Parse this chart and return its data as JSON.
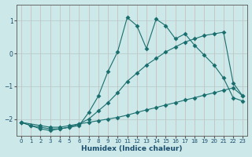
{
  "xlabel": "Humidex (Indice chaleur)",
  "bg_color": "#cce8e8",
  "grid_color": "#b0cccc",
  "line_color": "#1a6e6e",
  "xlim": [
    -0.5,
    23.5
  ],
  "ylim": [
    -2.5,
    1.5
  ],
  "xticks": [
    0,
    1,
    2,
    3,
    4,
    5,
    6,
    7,
    8,
    9,
    10,
    11,
    12,
    13,
    14,
    15,
    16,
    17,
    18,
    19,
    20,
    21,
    22,
    23
  ],
  "yticks": [
    -2,
    -1,
    0,
    1
  ],
  "line1_x": [
    0,
    1,
    2,
    3,
    4,
    5,
    6,
    7,
    8,
    9,
    10,
    11,
    12,
    13,
    14,
    15,
    16,
    17,
    18,
    19,
    20,
    21,
    22,
    23
  ],
  "line1_y": [
    -2.1,
    -2.2,
    -2.25,
    -2.3,
    -2.3,
    -2.25,
    -2.2,
    -1.8,
    -1.3,
    -0.55,
    0.05,
    1.1,
    0.85,
    0.15,
    1.05,
    0.85,
    0.45,
    0.6,
    0.25,
    -0.05,
    -0.35,
    -0.75,
    -1.35,
    -1.45
  ],
  "line2_x": [
    0,
    1,
    2,
    3,
    4,
    5,
    6,
    7,
    8,
    9,
    10,
    11,
    12,
    13,
    14,
    15,
    16,
    17,
    18,
    19,
    20,
    21,
    22,
    23
  ],
  "line2_y": [
    -2.1,
    -2.2,
    -2.3,
    -2.35,
    -2.3,
    -2.25,
    -2.15,
    -2.0,
    -1.75,
    -1.5,
    -1.2,
    -0.85,
    -0.6,
    -0.35,
    -0.15,
    0.05,
    0.2,
    0.35,
    0.45,
    0.55,
    0.6,
    0.65,
    -0.9,
    -1.3
  ],
  "line3_x": [
    0,
    2,
    3,
    4,
    5,
    6,
    7,
    8,
    9,
    10,
    11,
    12,
    13,
    14,
    15,
    16,
    17,
    18,
    19,
    20,
    21,
    22,
    23
  ],
  "line3_y": [
    -2.1,
    -2.2,
    -2.25,
    -2.25,
    -2.2,
    -2.15,
    -2.1,
    -2.05,
    -2.0,
    -1.95,
    -1.88,
    -1.8,
    -1.72,
    -1.65,
    -1.57,
    -1.5,
    -1.42,
    -1.35,
    -1.27,
    -1.2,
    -1.12,
    -1.05,
    -1.3
  ]
}
